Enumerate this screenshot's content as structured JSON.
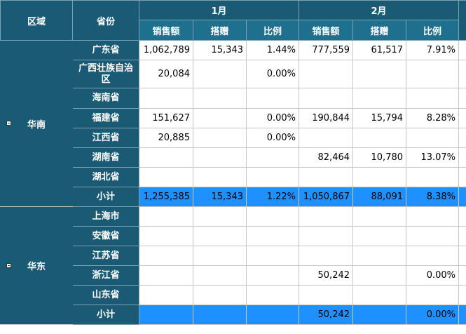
{
  "header": {
    "region": "区域",
    "province": "省份",
    "months": [
      "1月",
      "2月"
    ],
    "cols": [
      "销售额",
      "搭赠",
      "比例"
    ]
  },
  "regions": [
    {
      "name": "华南",
      "rows": [
        {
          "province": "广东省",
          "m1": [
            "1,062,789",
            "15,343",
            "1.44%"
          ],
          "m2": [
            "777,559",
            "61,517",
            "7.91%"
          ]
        },
        {
          "province": "广西壮族自治区",
          "m1": [
            "20,084",
            "",
            "0.00%"
          ],
          "m2": [
            "",
            "",
            ""
          ]
        },
        {
          "province": "海南省",
          "m1": [
            "",
            "",
            ""
          ],
          "m2": [
            "",
            "",
            ""
          ]
        },
        {
          "province": "福建省",
          "m1": [
            "151,627",
            "",
            "0.00%"
          ],
          "m2": [
            "190,844",
            "15,794",
            "8.28%"
          ]
        },
        {
          "province": "江西省",
          "m1": [
            "20,885",
            "",
            "0.00%"
          ],
          "m2": [
            "",
            "",
            ""
          ]
        },
        {
          "province": "湖南省",
          "m1": [
            "",
            "",
            ""
          ],
          "m2": [
            "82,464",
            "10,780",
            "13.07%"
          ]
        },
        {
          "province": "湖北省",
          "m1": [
            "",
            "",
            ""
          ],
          "m2": [
            "",
            "",
            ""
          ]
        }
      ],
      "subtotal": {
        "label": "小计",
        "m1": [
          "1,255,385",
          "15,343",
          "1.22%"
        ],
        "m2": [
          "1,050,867",
          "88,091",
          "8.38%"
        ]
      }
    },
    {
      "name": "华东",
      "rows": [
        {
          "province": "上海市",
          "m1": [
            "",
            "",
            ""
          ],
          "m2": [
            "",
            "",
            ""
          ]
        },
        {
          "province": "安徽省",
          "m1": [
            "",
            "",
            ""
          ],
          "m2": [
            "",
            "",
            ""
          ]
        },
        {
          "province": "江苏省",
          "m1": [
            "",
            "",
            ""
          ],
          "m2": [
            "",
            "",
            ""
          ]
        },
        {
          "province": "浙江省",
          "m1": [
            "",
            "",
            ""
          ],
          "m2": [
            "50,242",
            "",
            "0.00%"
          ]
        },
        {
          "province": "山东省",
          "m1": [
            "",
            "",
            ""
          ],
          "m2": [
            "",
            "",
            ""
          ]
        }
      ],
      "subtotal": {
        "label": "小计",
        "m1": [
          "",
          "",
          ""
        ],
        "m2": [
          "50,242",
          "",
          "0.00%"
        ]
      }
    }
  ]
}
